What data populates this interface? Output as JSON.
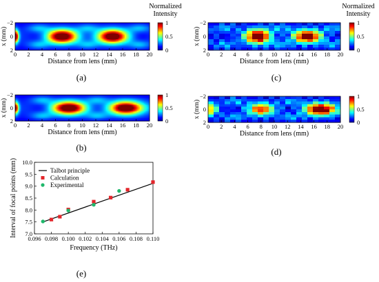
{
  "figure": {
    "panel_a_label": "(a)",
    "panel_b_label": "(b)",
    "panel_c_label": "(c)",
    "panel_d_label": "(d)",
    "panel_e_label": "(e)",
    "colorbar_title_line1": "Normalized",
    "colorbar_title_line2": "Intensity"
  },
  "chart_data": [
    {
      "id": "a",
      "type": "heatmap",
      "title": "",
      "xlabel": "Distance from lens (mm)",
      "ylabel": "x (mm)",
      "xlim": [
        0,
        20
      ],
      "ylim": [
        -2,
        2
      ],
      "xticks": [
        "0",
        "2",
        "4",
        "6",
        "8",
        "10",
        "12",
        "14",
        "16",
        "18",
        "20"
      ],
      "yticks": [
        "−2",
        "0",
        "2"
      ],
      "colorbar": {
        "range": [
          0,
          1
        ],
        "ticks": [
          "1",
          "0.5",
          "0"
        ],
        "label": "Normalized Intensity"
      },
      "style": "smooth",
      "focal_spots": [
        {
          "z_mm": 0.0,
          "x_mm": 0,
          "peak": 1.0,
          "width_mm": 0.5,
          "height_mm": 0.9
        },
        {
          "z_mm": 7.0,
          "x_mm": 0,
          "peak": 1.0,
          "width_mm": 2.2,
          "height_mm": 1.0
        },
        {
          "z_mm": 14.5,
          "x_mm": 0,
          "peak": 1.0,
          "width_mm": 2.2,
          "height_mm": 1.0
        }
      ],
      "side_lobes": [
        3.5,
        10.8,
        18.5
      ]
    },
    {
      "id": "b",
      "type": "heatmap",
      "title": "",
      "xlabel": "Distance from lens (mm)",
      "ylabel": "x (mm)",
      "xlim": [
        0,
        20
      ],
      "ylim": [
        -2,
        2
      ],
      "xticks": [
        "0",
        "2",
        "4",
        "6",
        "8",
        "10",
        "12",
        "14",
        "16",
        "18",
        "20"
      ],
      "yticks": [
        "−2",
        "0",
        "2"
      ],
      "colorbar": {
        "range": [
          0,
          1
        ],
        "ticks": [
          "1",
          "0.5",
          "0"
        ],
        "label": ""
      },
      "style": "smooth",
      "focal_spots": [
        {
          "z_mm": 0.0,
          "x_mm": 0,
          "peak": 0.9,
          "width_mm": 0.5,
          "height_mm": 0.9
        },
        {
          "z_mm": 8.0,
          "x_mm": 0,
          "peak": 1.0,
          "width_mm": 2.4,
          "height_mm": 1.0
        },
        {
          "z_mm": 16.5,
          "x_mm": 0,
          "peak": 1.0,
          "width_mm": 2.4,
          "height_mm": 1.0
        }
      ],
      "side_lobes": [
        4.0,
        12.2
      ]
    },
    {
      "id": "c",
      "type": "heatmap",
      "title": "",
      "xlabel": "Distance from lens (mm)",
      "ylabel": "x (mm)",
      "xlim": [
        0,
        20
      ],
      "ylim": [
        -2,
        2
      ],
      "xticks": [
        "0",
        "2",
        "4",
        "6",
        "8",
        "10",
        "12",
        "14",
        "16",
        "18",
        "20"
      ],
      "yticks": [
        "−2",
        "0",
        "2"
      ],
      "colorbar": {
        "range": [
          0,
          1
        ],
        "ticks": [
          "1",
          "0.5",
          "0"
        ],
        "label": "Normalized Intensity"
      },
      "style": "pixelated",
      "focal_spots": [
        {
          "z_mm": 7.5,
          "x_mm": 0,
          "peak": 1.0,
          "width_mm": 1.8,
          "height_mm": 1.0
        },
        {
          "z_mm": 15.0,
          "x_mm": 0,
          "peak": 0.95,
          "width_mm": 2.0,
          "height_mm": 0.9
        }
      ],
      "side_lobes": [
        2.5,
        11.0,
        19.0
      ]
    },
    {
      "id": "d",
      "type": "heatmap",
      "title": "",
      "xlabel": "Distance from lens (mm)",
      "ylabel": "x (mm)",
      "xlim": [
        0,
        20
      ],
      "ylim": [
        -2,
        2
      ],
      "xticks": [
        "0",
        "2",
        "4",
        "6",
        "8",
        "10",
        "12",
        "14",
        "16",
        "18",
        "20"
      ],
      "yticks": [
        "−2",
        "0",
        "2"
      ],
      "colorbar": {
        "range": [
          0,
          1
        ],
        "ticks": [
          "1",
          "0.5",
          "0"
        ],
        "label": ""
      },
      "style": "pixelated",
      "focal_spots": [
        {
          "z_mm": 0.5,
          "x_mm": 0,
          "peak": 0.55,
          "width_mm": 0.8,
          "height_mm": 0.9
        },
        {
          "z_mm": 8.0,
          "x_mm": 0,
          "peak": 0.7,
          "width_mm": 1.8,
          "height_mm": 0.9
        },
        {
          "z_mm": 17.0,
          "x_mm": 0,
          "peak": 1.0,
          "width_mm": 2.2,
          "height_mm": 0.9
        }
      ],
      "side_lobes": [
        4.0,
        12.5
      ]
    },
    {
      "id": "e",
      "type": "scatter",
      "title": "",
      "xlabel": "Frequency (THz)",
      "ylabel": "Interval  of focal points (mm)",
      "xlim": [
        0.096,
        0.11
      ],
      "ylim": [
        7.0,
        10.0
      ],
      "xticks": [
        "0.096",
        "0.098",
        "0.100",
        "0.102",
        "0.104",
        "0.106",
        "0.108",
        "0.110"
      ],
      "yticks": [
        "7.0",
        "7.5",
        "8.0",
        "8.5",
        "9.0",
        "9.5",
        "10.0"
      ],
      "legend_position": "top-left",
      "series": [
        {
          "name": "Talbot principle",
          "kind": "line",
          "color": "#000000",
          "x": [
            0.097,
            0.11
          ],
          "y": [
            7.5,
            9.12
          ]
        },
        {
          "name": "Calculation",
          "kind": "square",
          "color": "#e3262b",
          "x": [
            0.098,
            0.099,
            0.1,
            0.103,
            0.105,
            0.107,
            0.11
          ],
          "y": [
            7.6,
            7.72,
            8.02,
            8.35,
            8.52,
            8.85,
            9.17
          ]
        },
        {
          "name": "Experimental",
          "kind": "circle",
          "color": "#1fb86b",
          "x": [
            0.097,
            0.1,
            0.103,
            0.106
          ],
          "y": [
            7.52,
            7.98,
            8.22,
            8.8
          ]
        }
      ]
    }
  ]
}
